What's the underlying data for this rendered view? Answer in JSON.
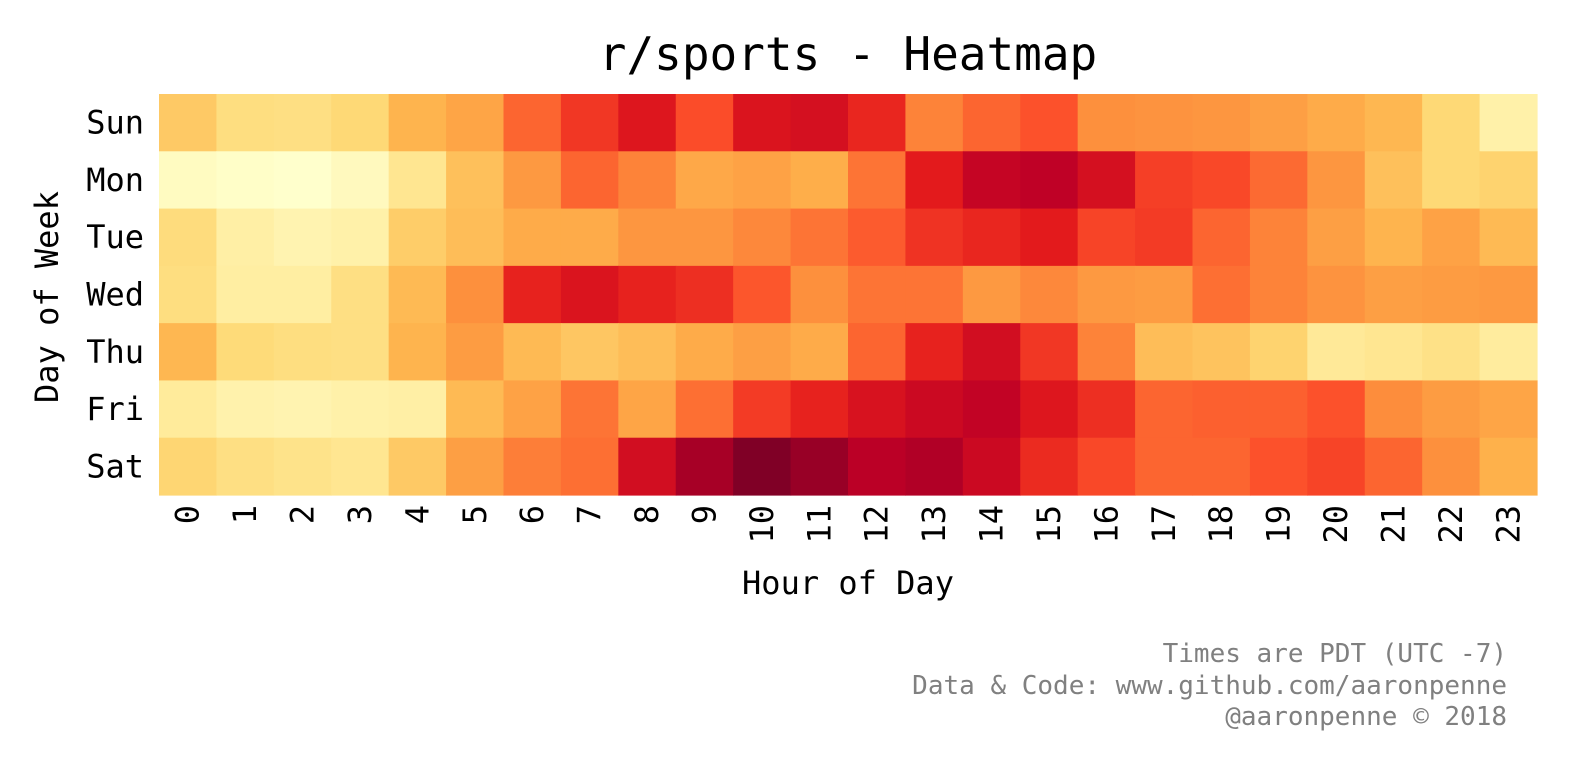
{
  "chart_data": {
    "type": "heatmap",
    "title": "r/sports - Heatmap",
    "xlabel": "Hour of Day",
    "ylabel": "Day of Week",
    "x": [
      "0",
      "1",
      "2",
      "3",
      "4",
      "5",
      "6",
      "7",
      "8",
      "9",
      "10",
      "11",
      "12",
      "13",
      "14",
      "15",
      "16",
      "17",
      "18",
      "19",
      "20",
      "21",
      "22",
      "23"
    ],
    "y": [
      "Sun",
      "Mon",
      "Tue",
      "Wed",
      "Thu",
      "Fri",
      "Sat"
    ],
    "colormap": "YlOrRd",
    "colorbar": false,
    "vrange": [
      0,
      1
    ],
    "values": [
      [
        0.3,
        0.22,
        0.21,
        0.25,
        0.37,
        0.42,
        0.58,
        0.68,
        0.77,
        0.63,
        0.78,
        0.8,
        0.72,
        0.52,
        0.58,
        0.62,
        0.49,
        0.48,
        0.47,
        0.44,
        0.4,
        0.36,
        0.25,
        0.1
      ],
      [
        0.03,
        0.01,
        0.0,
        0.04,
        0.17,
        0.33,
        0.46,
        0.58,
        0.52,
        0.41,
        0.43,
        0.39,
        0.55,
        0.75,
        0.85,
        0.87,
        0.8,
        0.66,
        0.64,
        0.57,
        0.47,
        0.33,
        0.25,
        0.27
      ],
      [
        0.23,
        0.11,
        0.08,
        0.1,
        0.29,
        0.34,
        0.4,
        0.4,
        0.47,
        0.47,
        0.51,
        0.55,
        0.6,
        0.69,
        0.72,
        0.75,
        0.65,
        0.67,
        0.58,
        0.52,
        0.44,
        0.37,
        0.43,
        0.35
      ],
      [
        0.22,
        0.12,
        0.12,
        0.21,
        0.35,
        0.49,
        0.73,
        0.78,
        0.73,
        0.7,
        0.61,
        0.49,
        0.55,
        0.55,
        0.46,
        0.51,
        0.46,
        0.45,
        0.56,
        0.52,
        0.48,
        0.44,
        0.45,
        0.46
      ],
      [
        0.36,
        0.24,
        0.22,
        0.21,
        0.37,
        0.45,
        0.35,
        0.31,
        0.34,
        0.4,
        0.44,
        0.4,
        0.58,
        0.73,
        0.81,
        0.68,
        0.52,
        0.34,
        0.32,
        0.27,
        0.15,
        0.17,
        0.2,
        0.13
      ],
      [
        0.14,
        0.09,
        0.08,
        0.1,
        0.11,
        0.35,
        0.43,
        0.55,
        0.42,
        0.56,
        0.67,
        0.73,
        0.79,
        0.83,
        0.86,
        0.77,
        0.7,
        0.58,
        0.59,
        0.59,
        0.62,
        0.5,
        0.45,
        0.42
      ],
      [
        0.26,
        0.21,
        0.19,
        0.17,
        0.3,
        0.44,
        0.53,
        0.56,
        0.81,
        0.92,
        1.0,
        0.95,
        0.88,
        0.9,
        0.83,
        0.71,
        0.64,
        0.58,
        0.58,
        0.62,
        0.65,
        0.58,
        0.49,
        0.38
      ]
    ]
  },
  "footer": {
    "line1": "Times are PDT (UTC -7)",
    "line2": "Data & Code: www.github.com/aaronpenne",
    "line3": "@aaronpenne © 2018"
  }
}
